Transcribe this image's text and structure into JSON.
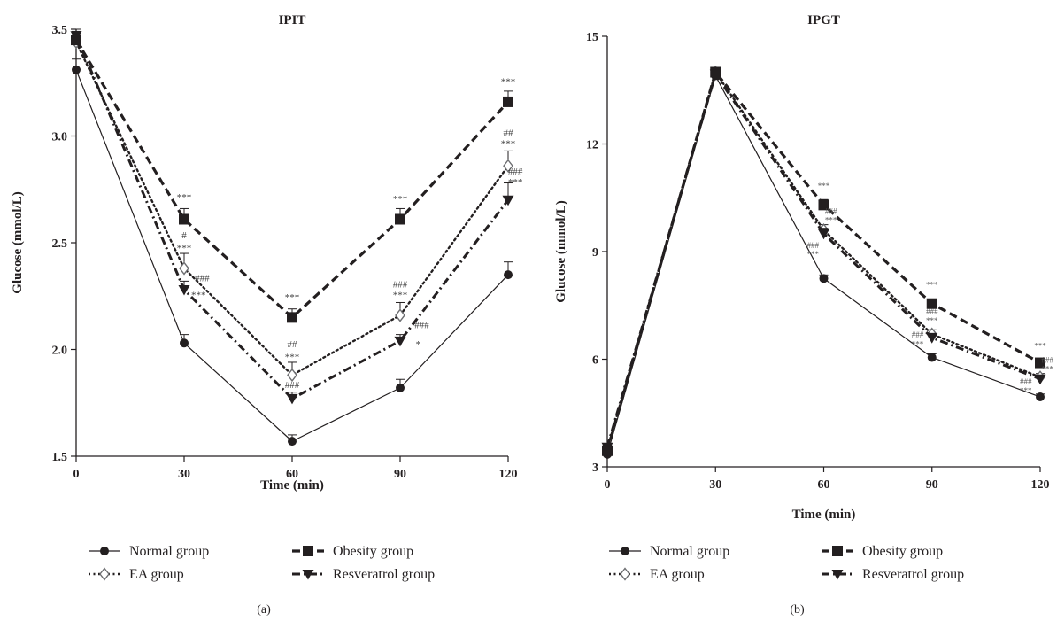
{
  "chart_data": [
    {
      "type": "line",
      "title": "IPIT",
      "xlabel": "Time (min)",
      "ylabel": "Glucose (mmol/L)",
      "x": [
        0,
        30,
        60,
        90,
        120
      ],
      "xticks": [
        "0",
        "30",
        "60",
        "90",
        "120"
      ],
      "yticks": [
        "1.5",
        "2.0",
        "2.5",
        "3.0",
        "3.5"
      ],
      "ylim": [
        1.5,
        3.5
      ],
      "panel_label": "(a)",
      "series": [
        {
          "name": "Normal group",
          "key": "normal",
          "values": [
            3.31,
            2.03,
            1.57,
            1.82,
            2.35
          ],
          "err": [
            0.05,
            0.04,
            0.03,
            0.04,
            0.06
          ]
        },
        {
          "name": "Obesity group",
          "key": "obesity",
          "values": [
            3.45,
            2.61,
            2.15,
            2.61,
            3.16
          ],
          "err": [
            0.04,
            0.05,
            0.04,
            0.05,
            0.05
          ]
        },
        {
          "name": "EA group",
          "key": "ea",
          "values": [
            3.44,
            2.38,
            1.88,
            2.16,
            2.86
          ],
          "err": [
            0.04,
            0.07,
            0.06,
            0.06,
            0.07
          ]
        },
        {
          "name": "Resveratrol group",
          "key": "resveratrol",
          "values": [
            3.47,
            2.28,
            1.77,
            2.04,
            2.7
          ],
          "err": [
            0.03,
            0.04,
            0.03,
            0.03,
            0.08
          ]
        }
      ],
      "annotations": [
        {
          "text": "***",
          "x": 30,
          "y": 2.7,
          "size": "normal"
        },
        {
          "text": "#",
          "x": 30,
          "y": 2.52,
          "size": "normal"
        },
        {
          "text": "***",
          "x": 30,
          "y": 2.46,
          "size": "normal"
        },
        {
          "text": "###",
          "x": 35,
          "y": 2.32,
          "size": "normal"
        },
        {
          "text": "***",
          "x": 34,
          "y": 2.24,
          "size": "normal"
        },
        {
          "text": "***",
          "x": 60,
          "y": 2.23,
          "size": "normal"
        },
        {
          "text": "##",
          "x": 60,
          "y": 2.01,
          "size": "normal"
        },
        {
          "text": "***",
          "x": 60,
          "y": 1.95,
          "size": "normal"
        },
        {
          "text": "###",
          "x": 60,
          "y": 1.82,
          "size": "normal"
        },
        {
          "text": "***",
          "x": 90,
          "y": 2.69,
          "size": "normal"
        },
        {
          "text": "###",
          "x": 90,
          "y": 2.29,
          "size": "normal"
        },
        {
          "text": "***",
          "x": 90,
          "y": 2.24,
          "size": "normal"
        },
        {
          "text": "###",
          "x": 96,
          "y": 2.1,
          "size": "normal"
        },
        {
          "text": "*",
          "x": 95,
          "y": 2.01,
          "size": "normal"
        },
        {
          "text": "***",
          "x": 120,
          "y": 3.24,
          "size": "normal"
        },
        {
          "text": "##",
          "x": 120,
          "y": 3.0,
          "size": "normal"
        },
        {
          "text": "***",
          "x": 120,
          "y": 2.95,
          "size": "normal"
        },
        {
          "text": "###",
          "x": 122,
          "y": 2.82,
          "size": "normal"
        },
        {
          "text": "***",
          "x": 122,
          "y": 2.77,
          "size": "normal"
        }
      ]
    },
    {
      "type": "line",
      "title": "IPGT",
      "xlabel": "Time (min)",
      "ylabel": "Glucose (mmol/L)",
      "x": [
        0,
        30,
        60,
        90,
        120
      ],
      "xticks": [
        "0",
        "30",
        "60",
        "90",
        "120"
      ],
      "yticks": [
        "3",
        "6",
        "9",
        "12",
        "15"
      ],
      "ylim": [
        3,
        15
      ],
      "panel_label": "(b)",
      "series": [
        {
          "name": "Normal group",
          "key": "normal",
          "values": [
            3.35,
            13.9,
            8.25,
            6.05,
            4.95
          ],
          "err": [
            0.05,
            0.1,
            0.1,
            0.1,
            0.08
          ]
        },
        {
          "name": "Obesity group",
          "key": "obesity",
          "values": [
            3.45,
            14.0,
            10.3,
            7.55,
            5.9
          ],
          "err": [
            0.05,
            0.1,
            0.15,
            0.12,
            0.1
          ]
        },
        {
          "name": "EA group",
          "key": "ea",
          "values": [
            3.5,
            14.0,
            9.6,
            6.7,
            5.5
          ],
          "err": [
            0.05,
            0.1,
            0.15,
            0.12,
            0.1
          ]
        },
        {
          "name": "Resveratrol group",
          "key": "resveratrol",
          "values": [
            3.55,
            13.95,
            9.5,
            6.6,
            5.45
          ],
          "err": [
            0.05,
            0.1,
            0.15,
            0.12,
            0.1
          ]
        }
      ],
      "annotations": [
        {
          "text": "***",
          "x": 60,
          "y": 10.75,
          "size": "small"
        },
        {
          "text": "###",
          "x": 62,
          "y": 10.05,
          "size": "small"
        },
        {
          "text": "***",
          "x": 62,
          "y": 9.8,
          "size": "small"
        },
        {
          "text": "###",
          "x": 57,
          "y": 9.1,
          "size": "small"
        },
        {
          "text": "***",
          "x": 57,
          "y": 8.85,
          "size": "small"
        },
        {
          "text": "***",
          "x": 90,
          "y": 8.0,
          "size": "small"
        },
        {
          "text": "###",
          "x": 90,
          "y": 7.25,
          "size": "small"
        },
        {
          "text": "***",
          "x": 90,
          "y": 7.0,
          "size": "small"
        },
        {
          "text": "###",
          "x": 86,
          "y": 6.6,
          "size": "small"
        },
        {
          "text": "***",
          "x": 86,
          "y": 6.35,
          "size": "small"
        },
        {
          "text": "***",
          "x": 120,
          "y": 6.3,
          "size": "small"
        },
        {
          "text": "###",
          "x": 122,
          "y": 5.9,
          "size": "small"
        },
        {
          "text": "***",
          "x": 122,
          "y": 5.65,
          "size": "small"
        },
        {
          "text": "###",
          "x": 116,
          "y": 5.3,
          "size": "small"
        },
        {
          "text": "***",
          "x": 116,
          "y": 5.05,
          "size": "small"
        }
      ]
    }
  ],
  "styles": {
    "normal": {
      "dash": "",
      "width": 1.2,
      "marker": "circle",
      "color": "#231f20"
    },
    "obesity": {
      "dash": "9 5",
      "width": 3.2,
      "marker": "square",
      "color": "#231f20"
    },
    "ea": {
      "dash": "2 3.5",
      "width": 2.4,
      "marker": "diamond",
      "color": "#231f20"
    },
    "resveratrol": {
      "dash": "9 4 2 4",
      "width": 3.0,
      "marker": "triangle-down",
      "color": "#231f20"
    }
  }
}
